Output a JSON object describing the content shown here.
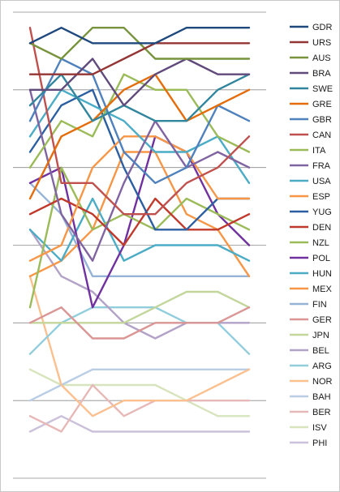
{
  "chart_data": {
    "type": "line",
    "subtype": "bump-chart",
    "title": "",
    "xlabel": "",
    "ylabel": "",
    "x": [
      1,
      2,
      3,
      4,
      5,
      6,
      7,
      8
    ],
    "ylim": [
      0,
      30
    ],
    "y_reversed": true,
    "grid": "horizontal",
    "legend_position": "right",
    "series": [
      {
        "name": "GDR",
        "color": "#1f497d",
        "values": [
          2,
          1,
          2,
          2,
          2,
          1,
          1,
          1
        ]
      },
      {
        "name": "URS",
        "color": "#943634",
        "values": [
          4,
          4,
          4,
          3,
          2,
          2,
          2,
          2
        ]
      },
      {
        "name": "AUS",
        "color": "#77933c",
        "values": [
          2,
          3,
          1,
          1,
          3,
          3,
          3,
          3
        ]
      },
      {
        "name": "BRA",
        "color": "#604a7b",
        "values": [
          5,
          5,
          3,
          6,
          4,
          3,
          4,
          4
        ]
      },
      {
        "name": "SWE",
        "color": "#31859c",
        "values": [
          6,
          4,
          7,
          6,
          7,
          7,
          5,
          4
        ]
      },
      {
        "name": "GRE",
        "color": "#e46c0a",
        "values": [
          12,
          8,
          7,
          5,
          4,
          7,
          6,
          5
        ]
      },
      {
        "name": "GBR",
        "color": "#4f81bd",
        "values": [
          7,
          3,
          4,
          9,
          11,
          10,
          6,
          7
        ]
      },
      {
        "name": "CAN",
        "color": "#c0504d",
        "values": [
          1,
          11,
          11,
          13,
          13,
          11,
          10,
          8
        ]
      },
      {
        "name": "ITA",
        "color": "#9bbb59",
        "values": [
          10,
          7,
          8,
          4,
          5,
          5,
          8,
          9
        ]
      },
      {
        "name": "FRA",
        "color": "#8064a2",
        "values": [
          5,
          13,
          16,
          11,
          7,
          10,
          9,
          10
        ]
      },
      {
        "name": "USA",
        "color": "#4bacc6",
        "values": [
          8,
          5,
          6,
          7,
          9,
          9,
          8,
          11
        ]
      },
      {
        "name": "ESP",
        "color": "#f79646",
        "values": [
          16,
          15,
          10,
          8,
          8,
          9,
          12,
          12
        ]
      },
      {
        "name": "YUG",
        "color": "#2c5fa1",
        "values": [
          9,
          6,
          5,
          10,
          14,
          14,
          12,
          12
        ]
      },
      {
        "name": "DEN",
        "color": "#c0392b",
        "values": [
          13,
          12,
          13,
          15,
          12,
          14,
          14,
          13
        ]
      },
      {
        "name": "NZL",
        "color": "#9bbb59",
        "values": [
          19,
          10,
          14,
          13,
          14,
          12,
          13,
          14
        ]
      },
      {
        "name": "POL",
        "color": "#7030a0",
        "values": [
          11,
          10,
          19,
          15,
          8,
          9,
          13,
          15
        ]
      },
      {
        "name": "HUN",
        "color": "#4bacc6",
        "values": [
          14,
          16,
          12,
          16,
          15,
          15,
          15,
          16
        ]
      },
      {
        "name": "MEX",
        "color": "#f79646",
        "values": [
          17,
          16,
          14,
          9,
          9,
          13,
          14,
          17
        ]
      },
      {
        "name": "FIN",
        "color": "#95b3d7",
        "values": [
          11,
          13,
          17,
          17,
          17,
          17,
          17,
          17
        ]
      },
      {
        "name": "GER",
        "color": "#d99694",
        "values": [
          20,
          19,
          21,
          21,
          20,
          20,
          20,
          19
        ]
      },
      {
        "name": "JPN",
        "color": "#c3d69b",
        "values": [
          20,
          20,
          20,
          20,
          19,
          18,
          18,
          19
        ]
      },
      {
        "name": "BEL",
        "color": "#b3a2c7",
        "values": [
          14,
          17,
          18,
          20,
          21,
          20,
          20,
          20
        ]
      },
      {
        "name": "ARG",
        "color": "#92cddc",
        "values": [
          22,
          20,
          19,
          19,
          19,
          20,
          20,
          22
        ]
      },
      {
        "name": "NOR",
        "color": "#fac090",
        "values": [
          17,
          24,
          26,
          25,
          25,
          25,
          24,
          23
        ]
      },
      {
        "name": "BAH",
        "color": "#b9cde5",
        "values": [
          25,
          24,
          23,
          23,
          23,
          23,
          23,
          23
        ]
      },
      {
        "name": "BER",
        "color": "#e6b9b8",
        "values": [
          26,
          27,
          24,
          26,
          25,
          25,
          25,
          25
        ]
      },
      {
        "name": "ISV",
        "color": "#d7e4bd",
        "values": [
          23,
          24,
          24,
          24,
          24,
          25,
          26,
          26
        ]
      },
      {
        "name": "PHI",
        "color": "#ccc1da",
        "values": [
          27,
          26,
          27,
          27,
          27,
          27,
          27,
          27
        ]
      }
    ]
  }
}
